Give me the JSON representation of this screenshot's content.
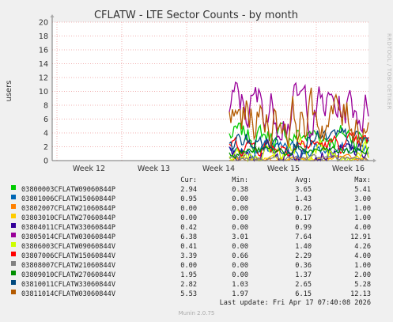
{
  "chart_data": {
    "type": "line",
    "title": "CFLATW - LTE Sector Counts - by month",
    "ylabel": "users",
    "ylim": [
      0,
      20
    ],
    "yticks": [
      0,
      2,
      4,
      6,
      8,
      10,
      12,
      14,
      16,
      18,
      20
    ],
    "xticks": [
      "Week 12",
      "Week 13",
      "Week 14",
      "Week 15",
      "Week 16"
    ],
    "grid": true,
    "columns": [
      "Cur:",
      "Min:",
      "Avg:",
      "Max:"
    ],
    "series": [
      {
        "name": "03800003CFLATW09060844P",
        "color": "#00cc00",
        "cur": "2.94",
        "min": "0.38",
        "avg": "3.65",
        "max": "5.41"
      },
      {
        "name": "03801006CFLATW15060844P",
        "color": "#0066b3",
        "cur": "0.95",
        "min": "0.00",
        "avg": "1.43",
        "max": "3.00"
      },
      {
        "name": "03802007CFLATW21060844P",
        "color": "#ff8000",
        "cur": "0.00",
        "min": "0.00",
        "avg": "0.26",
        "max": "1.00"
      },
      {
        "name": "03803010CFLATW27060844P",
        "color": "#ffcc00",
        "cur": "0.00",
        "min": "0.00",
        "avg": "0.17",
        "max": "1.00"
      },
      {
        "name": "03804011CFLATW33060844P",
        "color": "#330099",
        "cur": "0.42",
        "min": "0.00",
        "avg": "0.99",
        "max": "4.00"
      },
      {
        "name": "03805014CFLATW03060844P",
        "color": "#990099",
        "cur": "6.38",
        "min": "3.01",
        "avg": "7.64",
        "max": "12.91"
      },
      {
        "name": "03806003CFLATW09060844V",
        "color": "#ccff00",
        "cur": "0.41",
        "min": "0.00",
        "avg": "1.40",
        "max": "4.26"
      },
      {
        "name": "03807006CFLATW15060844V",
        "color": "#ff0000",
        "cur": "3.39",
        "min": "0.66",
        "avg": "2.29",
        "max": "4.00"
      },
      {
        "name": "03808007CFLATW21060844V",
        "color": "#808080",
        "cur": "0.00",
        "min": "0.00",
        "avg": "0.36",
        "max": "1.00"
      },
      {
        "name": "03809010CFLATW27060844V",
        "color": "#008f00",
        "cur": "1.95",
        "min": "0.00",
        "avg": "1.37",
        "max": "2.00"
      },
      {
        "name": "03810011CFLATW33060844V",
        "color": "#00487d",
        "cur": "2.82",
        "min": "1.03",
        "avg": "2.65",
        "max": "5.28"
      },
      {
        "name": "03811014CFLATW03060844V",
        "color": "#b35a00",
        "cur": "5.53",
        "min": "1.97",
        "avg": "6.15",
        "max": "12.13"
      }
    ]
  },
  "last_update": "Last update: Fri Apr 17 07:40:08 2026",
  "footer": "Munin 2.0.75",
  "watermark": "RRDTOOL / TOBI OETIKER"
}
